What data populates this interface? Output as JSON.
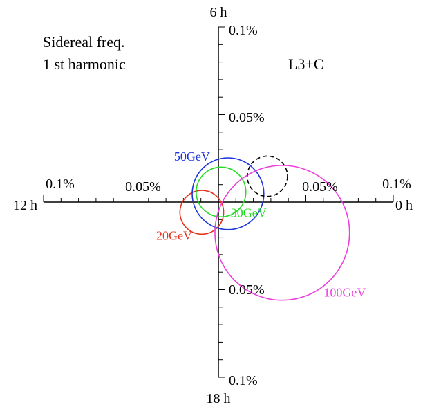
{
  "chart_data": {
    "type": "scatter",
    "title": "Sidereal freq.",
    "subtitle": "1 st  harmonic",
    "experiment_label": "L3+C",
    "clock_labels": {
      "top": "6 h",
      "left": "12 h",
      "right": "0 h",
      "bottom": "18 h"
    },
    "tick_labels": {
      "top_outer": "0.1%",
      "top_inner": "0.05%",
      "left_outer": "0.1%",
      "left_inner": "0.05%",
      "right_inner": "0.05%",
      "right_outer": "0.1%",
      "bottom_inner": "0.05%",
      "bottom_outer": "0.1%"
    },
    "axis_range_percent": [
      -0.1,
      0.1
    ],
    "major_tick_percent": 0.05,
    "minor_tick_percent": 0.01,
    "grid": false,
    "circles": [
      {
        "label": "20GeV",
        "color": "#e8321e",
        "cx": -0.0095,
        "cy": -0.0058,
        "r": 0.0125,
        "dashed": false
      },
      {
        "label": "30GeV",
        "color": "#22dd22",
        "cx": 0.0015,
        "cy": 0.0058,
        "r": 0.0142,
        "dashed": false
      },
      {
        "label": "50GeV",
        "color": "#1a33dd",
        "cx": 0.0055,
        "cy": 0.0048,
        "r": 0.0205,
        "dashed": false
      },
      {
        "label": "100GeV",
        "color": "#ee3ddd",
        "cx": 0.0365,
        "cy": -0.0175,
        "r": 0.0385,
        "dashed": false
      },
      {
        "label": "",
        "color": "#000000",
        "cx": 0.028,
        "cy": 0.0148,
        "r": 0.0115,
        "dashed": true
      }
    ]
  }
}
